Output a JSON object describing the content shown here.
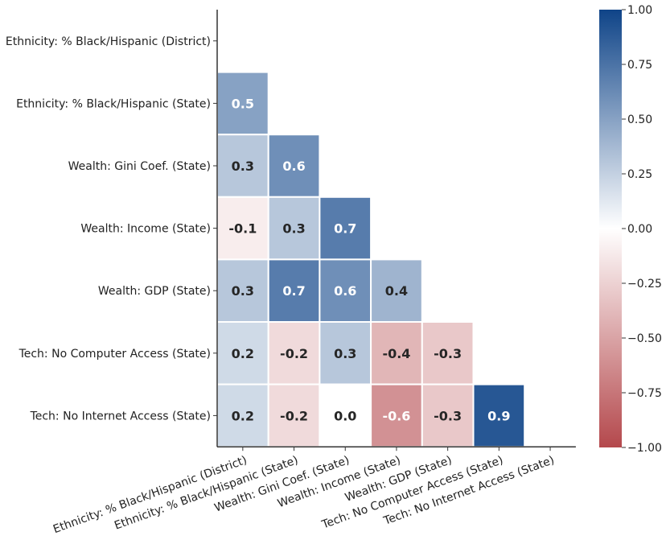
{
  "chart_data": {
    "type": "heatmap",
    "title": "",
    "xlabel": "",
    "ylabel": "",
    "mask": "upper-triangle-and-diagonal",
    "row_labels": [
      "Ethnicity: % Black/Hispanic (District)",
      "Ethnicity: % Black/Hispanic (State)",
      "Wealth: Gini Coef. (State)",
      "Wealth: Income (State)",
      "Wealth: GDP (State)",
      "Tech: No Computer Access (State)",
      "Tech: No Internet Access (State)"
    ],
    "col_labels": [
      "Ethnicity: % Black/Hispanic (District)",
      "Ethnicity: % Black/Hispanic (State)",
      "Wealth: Gini Coef. (State)",
      "Wealth: Income (State)",
      "Wealth: GDP (State)",
      "Tech: No Computer Access (State)",
      "Tech: No Internet Access (State)"
    ],
    "values": [
      [
        null,
        null,
        null,
        null,
        null,
        null,
        null
      ],
      [
        0.5,
        null,
        null,
        null,
        null,
        null,
        null
      ],
      [
        0.3,
        0.6,
        null,
        null,
        null,
        null,
        null
      ],
      [
        -0.1,
        0.3,
        0.7,
        null,
        null,
        null,
        null
      ],
      [
        0.3,
        0.7,
        0.6,
        0.4,
        null,
        null,
        null
      ],
      [
        0.2,
        -0.2,
        0.3,
        -0.4,
        -0.3,
        null,
        null
      ],
      [
        0.2,
        -0.2,
        0.0,
        -0.6,
        -0.3,
        0.9,
        null
      ]
    ],
    "cell_labels": [
      [
        null,
        null,
        null,
        null,
        null,
        null,
        null
      ],
      [
        "0.5",
        null,
        null,
        null,
        null,
        null,
        null
      ],
      [
        "0.3",
        "0.6",
        null,
        null,
        null,
        null,
        null
      ],
      [
        "-0.1",
        "0.3",
        "0.7",
        null,
        null,
        null,
        null
      ],
      [
        "0.3",
        "0.7",
        "0.6",
        "0.4",
        null,
        null,
        null
      ],
      [
        "0.2",
        "-0.2",
        "0.3",
        "-0.4",
        "-0.3",
        null,
        null
      ],
      [
        "0.2",
        "-0.2",
        "0.0",
        "-0.6",
        "-0.3",
        "0.9",
        null
      ]
    ],
    "colorbar": {
      "vmin": -1.0,
      "vmax": 1.0,
      "ticks": [
        1.0,
        0.75,
        0.5,
        0.25,
        0.0,
        -0.25,
        -0.5,
        -0.75,
        -1.0
      ],
      "tick_labels": [
        "1.00",
        "0.75",
        "0.50",
        "0.25",
        "0.00",
        "−0.25",
        "−0.50",
        "−0.75",
        "−1.00"
      ],
      "colors": {
        "low": "#b4484c",
        "mid": "#ffffff",
        "high": "#0f4488"
      },
      "placement": "right"
    },
    "grid": false
  }
}
